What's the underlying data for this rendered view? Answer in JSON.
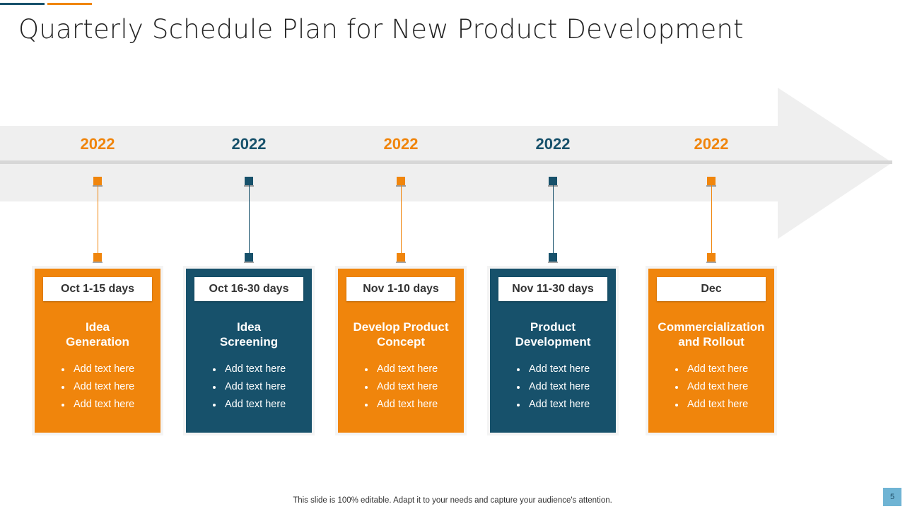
{
  "slide": {
    "title": "Quarterly Schedule Plan for New Product Development",
    "footer": "This slide is 100% editable. Adapt it to your needs and capture your audience's attention.",
    "page_number": "5"
  },
  "colors": {
    "orange": "#f0850c",
    "teal": "#17516b",
    "arrow_fill": "#efefef",
    "arrow_line": "#d7d7d7"
  },
  "stages": [
    {
      "year": "2022",
      "date": "Oct 1-15 days",
      "name": "Idea Generation",
      "bullets": [
        "Add text here",
        "Add text here",
        "Add text here"
      ],
      "color": "orange"
    },
    {
      "year": "2022",
      "date": "Oct 16-30 days",
      "name": "Idea Screening",
      "bullets": [
        "Add text here",
        "Add text here",
        "Add text here"
      ],
      "color": "teal"
    },
    {
      "year": "2022",
      "date": "Nov 1-10 days",
      "name": "Develop Product Concept",
      "bullets": [
        "Add text here",
        "Add text here",
        "Add text here"
      ],
      "color": "orange"
    },
    {
      "year": "2022",
      "date": "Nov 11-30 days",
      "name": "Product Development",
      "bullets": [
        "Add text here",
        "Add text here",
        "Add text here"
      ],
      "color": "teal"
    },
    {
      "year": "2022",
      "date": "Dec",
      "name": "Commercialization and Rollout",
      "bullets": [
        "Add text here",
        "Add text here",
        "Add text here"
      ],
      "color": "orange"
    }
  ]
}
